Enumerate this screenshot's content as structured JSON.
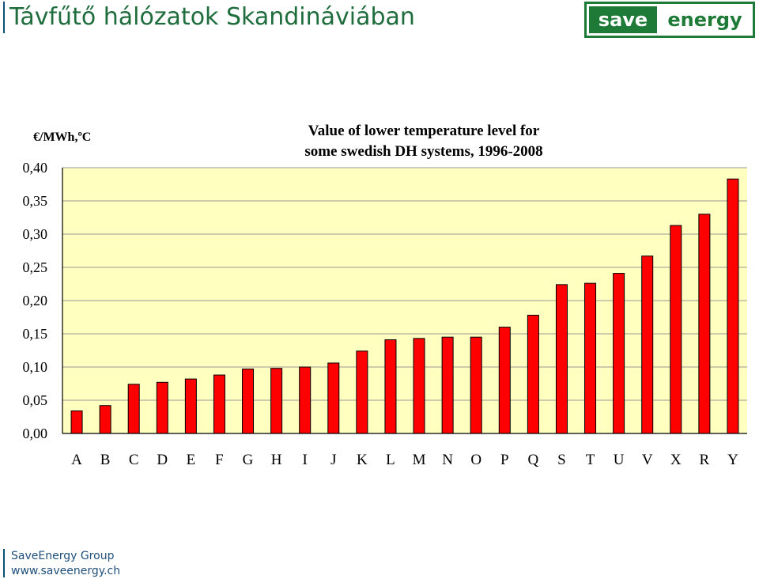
{
  "header": {
    "title": "Távfűtő hálózatok Skandináviában",
    "logo": {
      "left": "save",
      "right": "energy"
    }
  },
  "footer": {
    "company": "SaveEnergy Group",
    "url": "www.saveenergy.ch"
  },
  "colors": {
    "plot_background": "#ffffc0",
    "bar_fill": "#ff0000",
    "bar_stroke": "#000000",
    "brand_green": "#1e7a37",
    "title_green": "#1f6d3d"
  },
  "chart_data": {
    "type": "bar",
    "title_lines": [
      "Value of lower temperature level for",
      "some swedish DH systems, 1996-2008"
    ],
    "ylabel": "€/MWh,ºC",
    "xlabel": "",
    "ylim": [
      0,
      0.4
    ],
    "yticks": [
      "0,00",
      "0,05",
      "0,10",
      "0,15",
      "0,20",
      "0,25",
      "0,30",
      "0,35",
      "0,40"
    ],
    "categories": [
      "A",
      "B",
      "C",
      "D",
      "E",
      "F",
      "G",
      "H",
      "I",
      "J",
      "K",
      "L",
      "M",
      "N",
      "O",
      "P",
      "Q",
      "S",
      "T",
      "U",
      "V",
      "X",
      "R",
      "Y"
    ],
    "values": [
      0.034,
      0.042,
      0.074,
      0.077,
      0.082,
      0.088,
      0.097,
      0.098,
      0.1,
      0.106,
      0.124,
      0.141,
      0.143,
      0.145,
      0.145,
      0.16,
      0.178,
      0.224,
      0.226,
      0.241,
      0.267,
      0.313,
      0.33,
      0.383
    ],
    "grid": true,
    "legend": "none"
  }
}
